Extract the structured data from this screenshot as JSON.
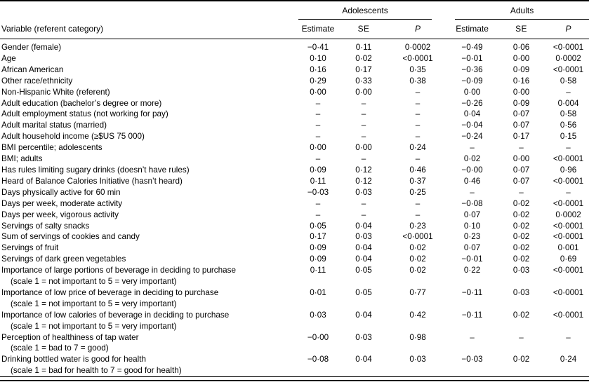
{
  "page": {
    "background": "#ffffff",
    "text_color": "#000000",
    "rule_color": "#000000"
  },
  "table": {
    "group_headers": [
      {
        "label": "Adolescents"
      },
      {
        "label": "Adults"
      }
    ],
    "column_headers": {
      "variable": "Variable (referent category)",
      "estimate": "Estimate",
      "se": "SE",
      "p": "P"
    },
    "rows": [
      {
        "label": "Gender (female)",
        "sub": "",
        "adolescents": [
          "−0·41",
          "0·11",
          "0·0002"
        ],
        "adults": [
          "−0·49",
          "0·06",
          "<0·0001"
        ]
      },
      {
        "label": "Age",
        "sub": "",
        "adolescents": [
          "0·10",
          "0·02",
          "<0·0001"
        ],
        "adults": [
          "−0·01",
          "0·00",
          "0·0002"
        ]
      },
      {
        "label": "African American",
        "sub": "",
        "adolescents": [
          "0·16",
          "0·17",
          "0·35"
        ],
        "adults": [
          "−0·36",
          "0·09",
          "<0·0001"
        ]
      },
      {
        "label": "Other race/ethnicity",
        "sub": "",
        "adolescents": [
          "0·29",
          "0·33",
          "0·38"
        ],
        "adults": [
          "−0·09",
          "0·16",
          "0·58"
        ]
      },
      {
        "label": "Non-Hispanic White (referent)",
        "sub": "",
        "adolescents": [
          "0·00",
          "0·00",
          "–"
        ],
        "adults": [
          "0·00",
          "0·00",
          "–"
        ]
      },
      {
        "label": "Adult education (bachelor’s degree or more)",
        "sub": "",
        "adolescents": [
          "–",
          "–",
          "–"
        ],
        "adults": [
          "−0·26",
          "0·09",
          "0·004"
        ]
      },
      {
        "label": "Adult employment status (not working for pay)",
        "sub": "",
        "adolescents": [
          "–",
          "–",
          "–"
        ],
        "adults": [
          "0·04",
          "0·07",
          "0·58"
        ]
      },
      {
        "label": "Adult marital status (married)",
        "sub": "",
        "adolescents": [
          "–",
          "–",
          "–"
        ],
        "adults": [
          "−0·04",
          "0·07",
          "0·56"
        ]
      },
      {
        "label": "Adult household income (≥$US 75 000)",
        "sub": "",
        "adolescents": [
          "–",
          "–",
          "–"
        ],
        "adults": [
          "−0·24",
          "0·17",
          "0·15"
        ]
      },
      {
        "label": "BMI percentile; adolescents",
        "sub": "",
        "adolescents": [
          "0·00",
          "0·00",
          "0·24"
        ],
        "adults": [
          "–",
          "–",
          "–"
        ]
      },
      {
        "label": "BMI; adults",
        "sub": "",
        "adolescents": [
          "–",
          "–",
          "–"
        ],
        "adults": [
          "0·02",
          "0·00",
          "<0·0001"
        ]
      },
      {
        "label": "Has rules limiting sugary drinks (doesn’t have rules)",
        "sub": "",
        "adolescents": [
          "0·09",
          "0·12",
          "0·46"
        ],
        "adults": [
          "−0·00",
          "0·07",
          "0·96"
        ]
      },
      {
        "label": "Heard of Balance Calories Initiative (hasn’t heard)",
        "sub": "",
        "adolescents": [
          "0·11",
          "0·12",
          "0·37"
        ],
        "adults": [
          "0·46",
          "0·07",
          "<0·0001"
        ]
      },
      {
        "label": "Days physically active for 60 min",
        "sub": "",
        "adolescents": [
          "−0·03",
          "0·03",
          "0·25"
        ],
        "adults": [
          "–",
          "–",
          "–"
        ]
      },
      {
        "label": "Days per week, moderate activity",
        "sub": "",
        "adolescents": [
          "–",
          "–",
          "–"
        ],
        "adults": [
          "−0·08",
          "0·02",
          "<0·0001"
        ]
      },
      {
        "label": "Days per week, vigorous activity",
        "sub": "",
        "adolescents": [
          "–",
          "–",
          "–"
        ],
        "adults": [
          "0·07",
          "0·02",
          "0·0002"
        ]
      },
      {
        "label": "Servings of salty snacks",
        "sub": "",
        "adolescents": [
          "0·05",
          "0·04",
          "0·23"
        ],
        "adults": [
          "0·10",
          "0·02",
          "<0·0001"
        ]
      },
      {
        "label": "Sum of servings of cookies and candy",
        "sub": "",
        "adolescents": [
          "0·17",
          "0·03",
          "<0·0001"
        ],
        "adults": [
          "0·23",
          "0·02",
          "<0·0001"
        ]
      },
      {
        "label": "Servings of fruit",
        "sub": "",
        "adolescents": [
          "0·09",
          "0·04",
          "0·02"
        ],
        "adults": [
          "0·07",
          "0·02",
          "0·001"
        ]
      },
      {
        "label": "Servings of dark green vegetables",
        "sub": "",
        "adolescents": [
          "0·09",
          "0·04",
          "0·02"
        ],
        "adults": [
          "−0·01",
          "0·02",
          "0·69"
        ]
      },
      {
        "label": "Importance of large portions of beverage in deciding to purchase",
        "sub": "(scale 1 = not important to 5 = very important)",
        "adolescents": [
          "0·11",
          "0·05",
          "0·02"
        ],
        "adults": [
          "0·22",
          "0·03",
          "<0·0001"
        ]
      },
      {
        "label": "Importance of low price of beverage in deciding to purchase",
        "sub": "(scale 1 = not important to 5 = very important)",
        "adolescents": [
          "0·01",
          "0·05",
          "0·77"
        ],
        "adults": [
          "−0·11",
          "0·03",
          "<0·0001"
        ]
      },
      {
        "label": "Importance of low calories of beverage in deciding to purchase",
        "sub": "(scale 1 = not important to 5 = very important)",
        "adolescents": [
          "0·03",
          "0·04",
          "0·42"
        ],
        "adults": [
          "−0·11",
          "0·02",
          "<0·0001"
        ]
      },
      {
        "label": "Perception of healthiness of tap water",
        "sub": "(scale 1 = bad to 7 = good)",
        "adolescents": [
          "−0·00",
          "0·03",
          "0·98"
        ],
        "adults": [
          "–",
          "–",
          "–"
        ]
      },
      {
        "label": "Drinking bottled water is good for health",
        "sub": "(scale 1 = bad for health to 7 = good for health)",
        "adolescents": [
          "−0·08",
          "0·04",
          "0·03"
        ],
        "adults": [
          "−0·03",
          "0·02",
          "0·24"
        ]
      }
    ]
  }
}
